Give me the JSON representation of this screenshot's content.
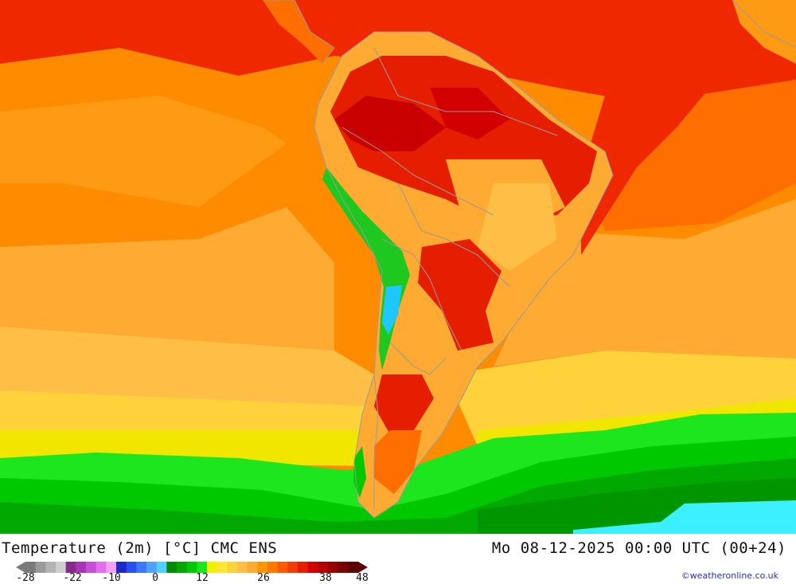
{
  "header": {
    "title": "Temperature (2m) [°C] CMC ENS",
    "datetime": "Mo 08-12-2025 00:00 UTC (00+24)"
  },
  "legend": {
    "ticks": [
      "-28",
      "-22",
      "-10",
      "0",
      "12",
      "26",
      "38",
      "48"
    ],
    "colors": [
      "#7a7a7a",
      "#9a9a9a",
      "#b4b4b4",
      "#cfcfcf",
      "#862a8e",
      "#a834b8",
      "#c84ed8",
      "#e06ef0",
      "#f49ef4",
      "#1e28c8",
      "#2850f0",
      "#3c78ff",
      "#50a0ff",
      "#50d0ff",
      "#008c00",
      "#00a800",
      "#00c800",
      "#1ee61e",
      "#f0f000",
      "#ffe632",
      "#ffd23c",
      "#ffbe46",
      "#ffaa32",
      "#ff9600",
      "#ff7800",
      "#ff5a00",
      "#f03c00",
      "#e61e00",
      "#d20000",
      "#b40000",
      "#960000",
      "#780000",
      "#5a0000"
    ]
  },
  "credit": "©weatheronline.co.uk",
  "palette": {
    "ocean_warm": "#ff8c00",
    "ocean_mild": "#ffaa32",
    "ocean_cool": "#ffd23c",
    "tropical": "#ff1400",
    "hot": "#e60000",
    "antarctic_green": "#00b400",
    "antarctic_dark": "#009600",
    "ice_cyan": "#3cf0ff",
    "lake": "#1ec8ff",
    "andes_green": "#1ec81e",
    "border": "#9a9a9a"
  }
}
